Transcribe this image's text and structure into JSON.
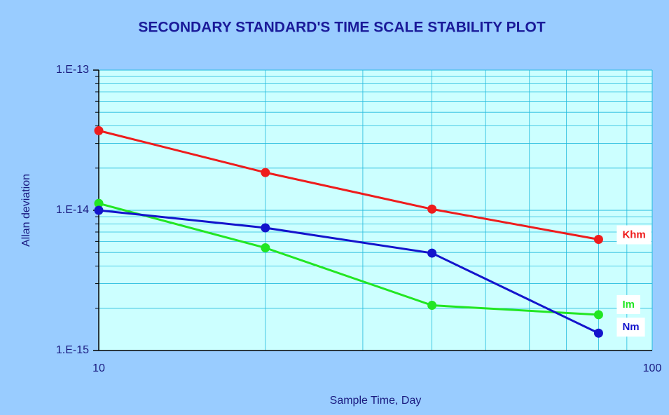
{
  "chart_data": {
    "type": "line",
    "title": "SECONDARY STANDARD'S TIME SCALE STABILITY PLOT",
    "x_label": "Sample Time, Day",
    "y_label": "Allan deviation",
    "x": [
      10,
      20,
      40,
      80
    ],
    "series": [
      {
        "name": "Khm",
        "color": "#ee1c1c",
        "values": [
          3.7e-14,
          1.86e-14,
          1.02e-14,
          6.2e-15
        ]
      },
      {
        "name": "Im",
        "color": "#22e622",
        "values": [
          1.12e-14,
          5.4e-15,
          2.1e-15,
          1.8e-15
        ]
      },
      {
        "name": "Nm",
        "color": "#1414cc",
        "values": [
          1e-14,
          7.5e-15,
          4.95e-15,
          1.33e-15
        ]
      }
    ],
    "xlim": [
      10,
      100
    ],
    "ylim": [
      1e-15,
      1e-13
    ],
    "xticks": [
      10,
      100
    ],
    "yticks": [
      {
        "value": 1e-15,
        "label": "1.E-15"
      },
      {
        "value": 1e-14,
        "label": "1.E-14"
      },
      {
        "value": 1e-13,
        "label": "1.E-13"
      }
    ],
    "xscale": "log",
    "yscale": "log",
    "grid": true,
    "minor_grid": true
  }
}
